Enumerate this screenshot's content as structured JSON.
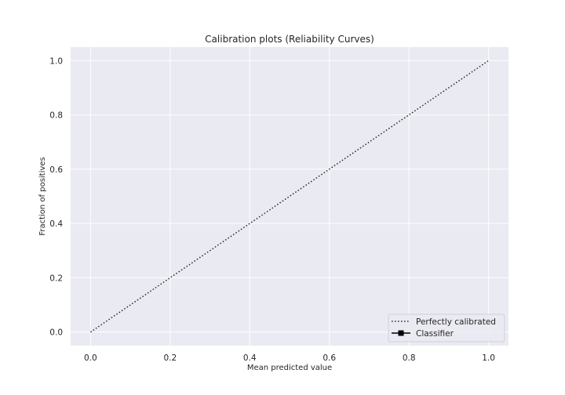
{
  "chart_data": {
    "type": "line",
    "title": "Calibration plots (Reliability Curves)",
    "xlabel": "Mean predicted value",
    "ylabel": "Fraction of positives",
    "xlim": [
      -0.05,
      1.05
    ],
    "ylim": [
      -0.05,
      1.05
    ],
    "xticks": [
      0.0,
      0.2,
      0.4,
      0.6,
      0.8,
      1.0
    ],
    "yticks": [
      0.0,
      0.2,
      0.4,
      0.6,
      0.8,
      1.0
    ],
    "xtick_labels": [
      "0.0",
      "0.2",
      "0.4",
      "0.6",
      "0.8",
      "1.0"
    ],
    "ytick_labels": [
      "0.0",
      "0.2",
      "0.4",
      "0.6",
      "0.8",
      "1.0"
    ],
    "grid": true,
    "legend_position": "lower-right",
    "series": [
      {
        "name": "Perfectly calibrated",
        "style": "dotted",
        "color": "#262626",
        "x": [
          0.0,
          1.0
        ],
        "y": [
          0.0,
          1.0
        ]
      },
      {
        "name": "Classifier",
        "style": "solid-square-marker",
        "color": "#000000",
        "x": [],
        "y": []
      }
    ],
    "background_color": "#eaeaf2",
    "grid_color": "#ffffff"
  }
}
